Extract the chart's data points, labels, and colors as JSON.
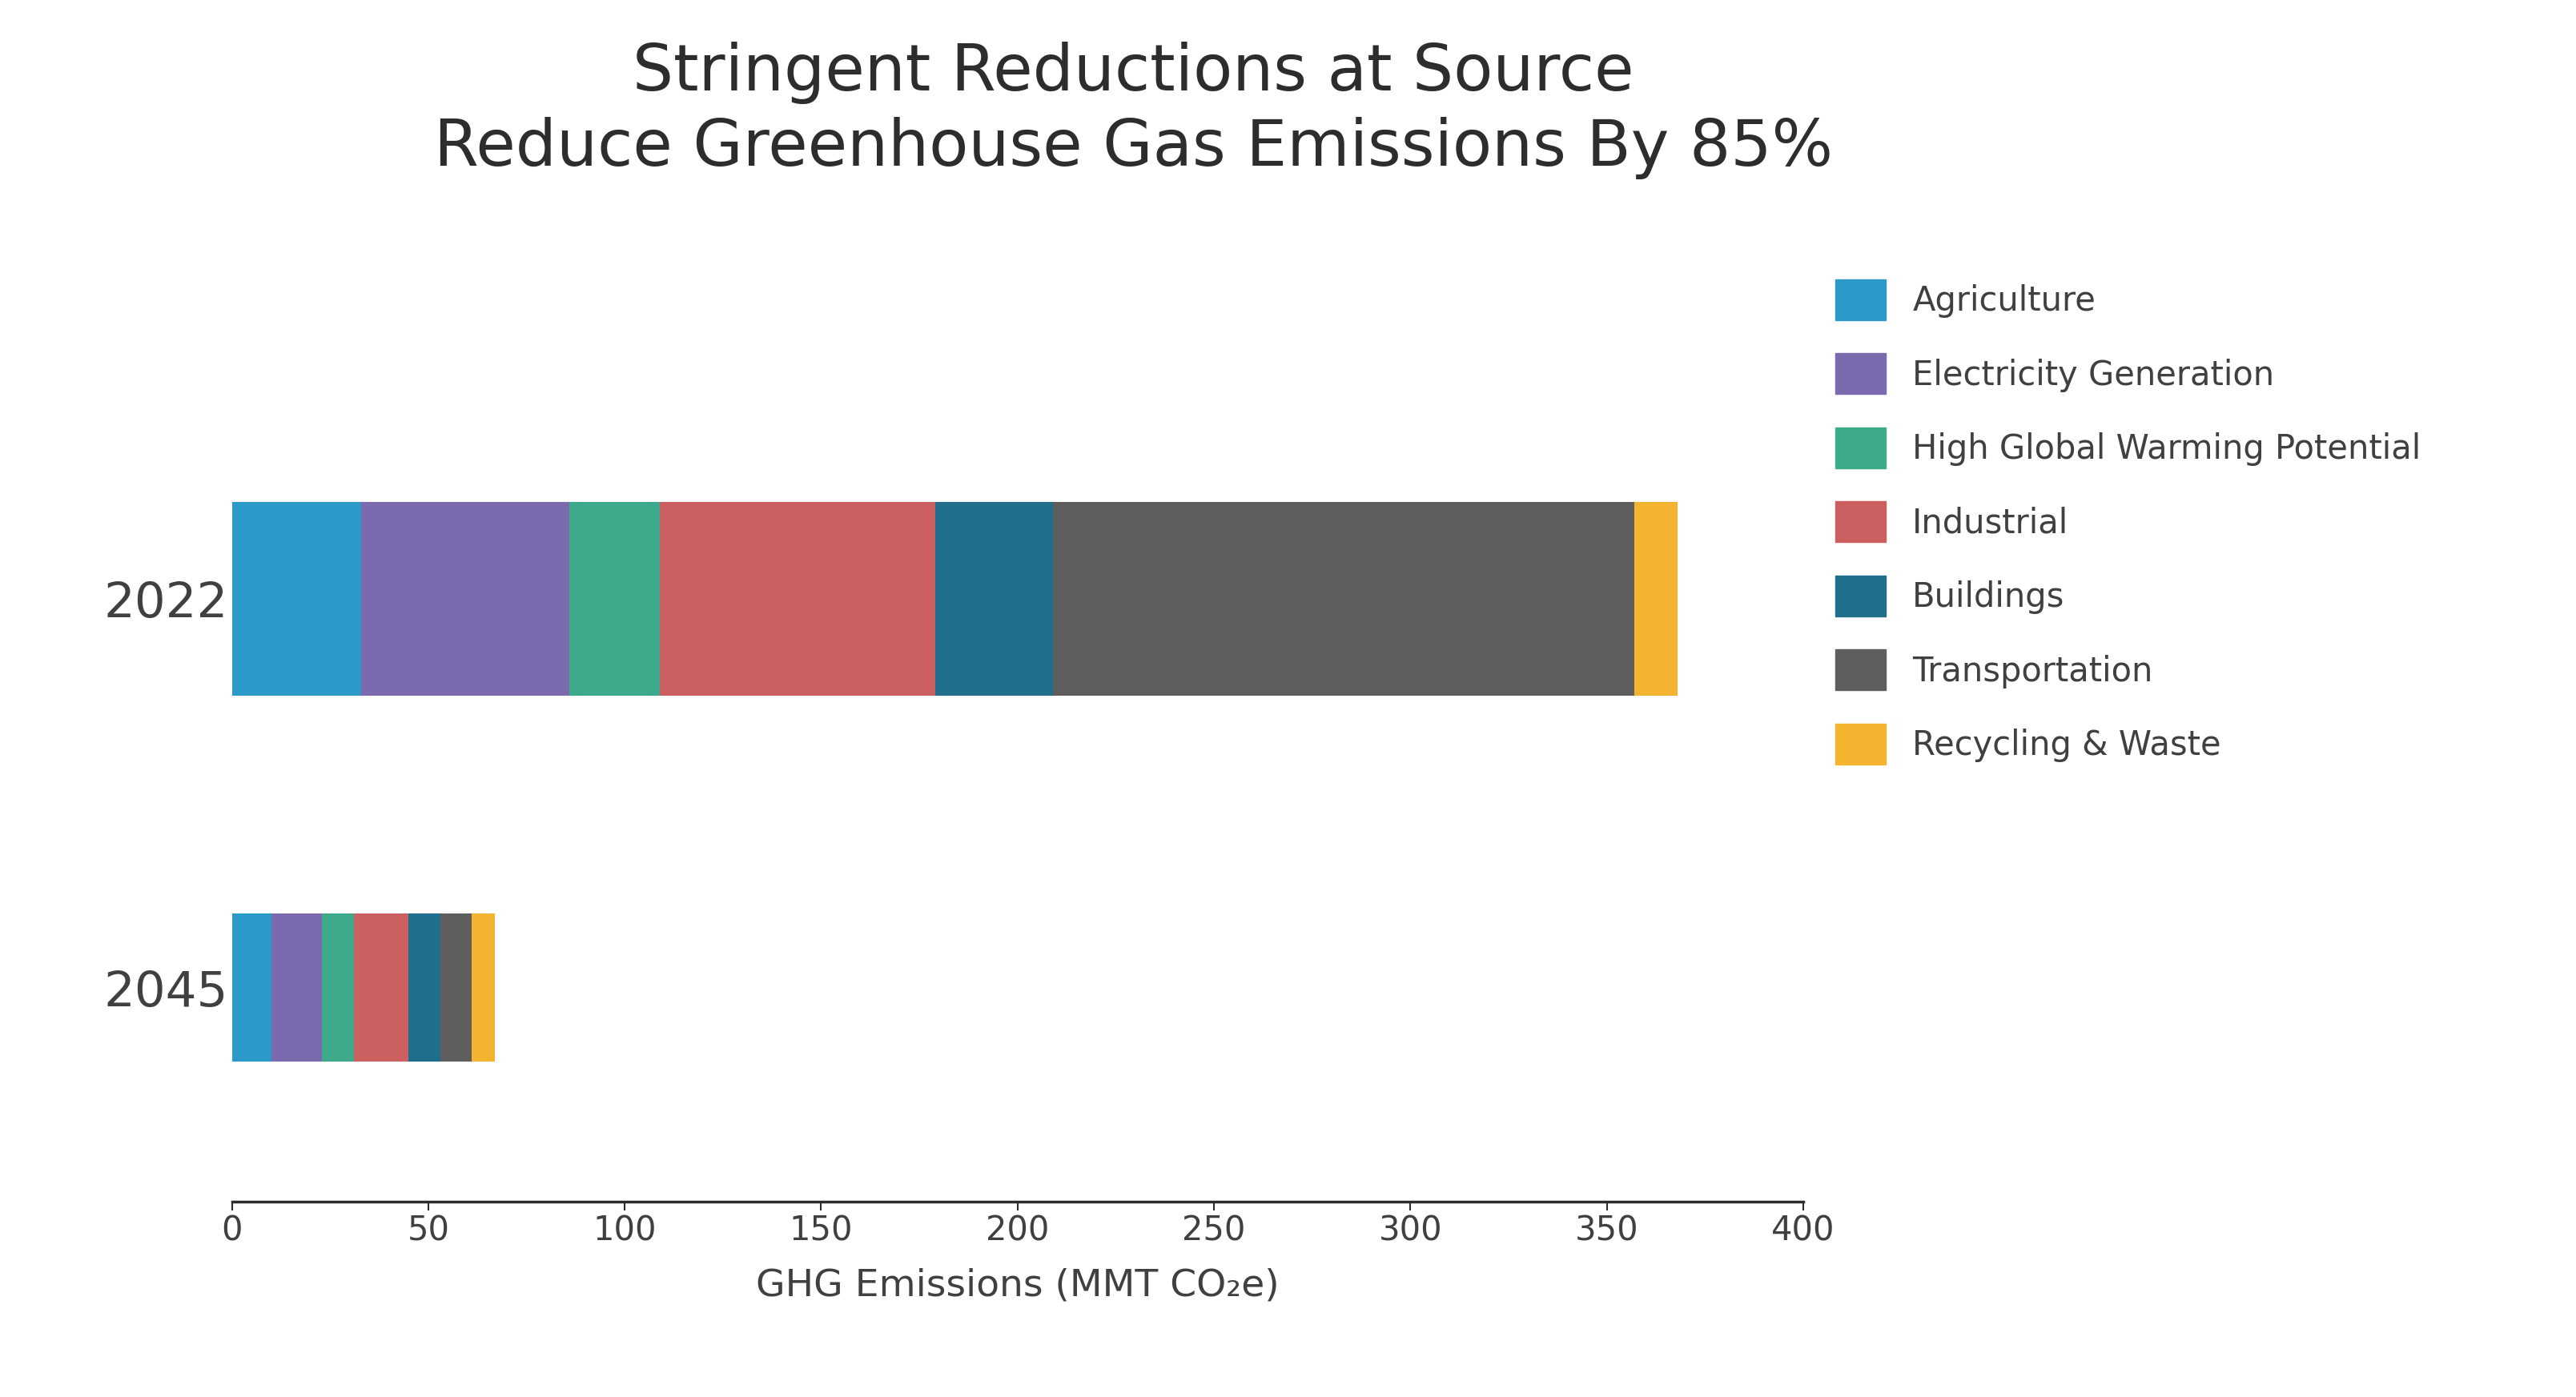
{
  "title_line1": "Stringent Reductions at Source",
  "title_line2": "Reduce Greenhouse Gas Emissions By 85%",
  "xlabel": "GHG Emissions (MMT CO₂e)",
  "categories": [
    "2022",
    "2045"
  ],
  "sectors": [
    "Agriculture",
    "Electricity Generation",
    "High Global Warming Potential",
    "Industrial",
    "Buildings",
    "Transportation",
    "Recycling & Waste"
  ],
  "colors": [
    "#2B9AC8",
    "#7B6BAE",
    "#3DAA8C",
    "#CC5F5F",
    "#1E6E8C",
    "#5E5E5E",
    "#F5B430"
  ],
  "values_2022": [
    33,
    53,
    23,
    70,
    30,
    148,
    11
  ],
  "values_2045": [
    10,
    13,
    8,
    14,
    8,
    8,
    6
  ],
  "xlim": [
    0,
    400
  ],
  "xticks": [
    0,
    50,
    100,
    150,
    200,
    250,
    300,
    350,
    400
  ],
  "background_color": "#ffffff",
  "title_fontsize": 58,
  "tick_fontsize": 30,
  "label_fontsize": 34,
  "legend_fontsize": 30,
  "ytick_fontsize": 44
}
